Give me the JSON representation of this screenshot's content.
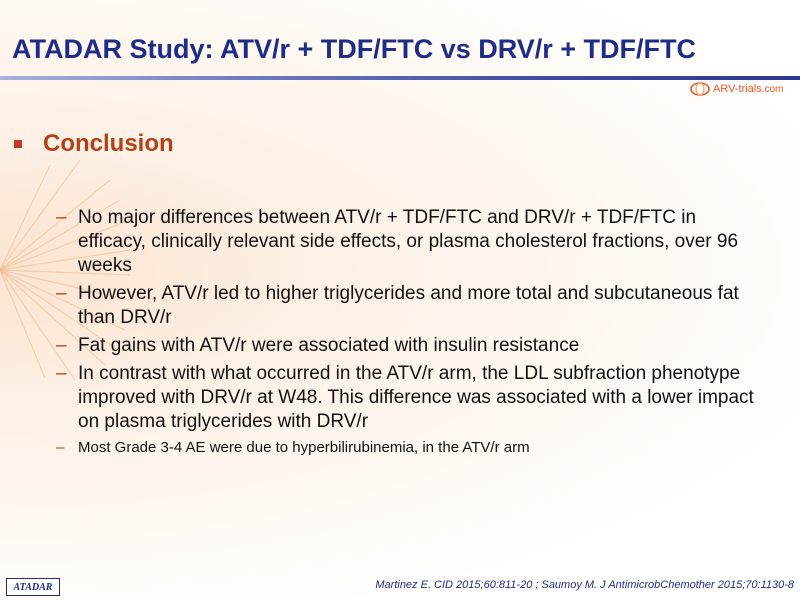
{
  "title": "ATADAR Study: ATV/r + TDF/FTC vs DRV/r + TDF/FTC",
  "logo": {
    "text": "ARV-trials",
    "suffix": ".com"
  },
  "section": {
    "heading": "Conclusion"
  },
  "bullets": [
    {
      "text": "No major differences between ATV/r + TDF/FTC and DRV/r + TDF/FTC in efficacy, clinically relevant side effects, or plasma cholesterol fractions, over 96 weeks"
    },
    {
      "text": "However, ATV/r led to higher triglycerides and more total and subcutaneous fat than DRV/r"
    },
    {
      "text": "Fat gains with ATV/r were associated with insulin resistance"
    },
    {
      "text": "In contrast with what occurred in the ATV/r arm, the LDL subfraction phenotype improved with DRV/r at W48. This difference was associated with a lower impact on plasma triglycerides with DRV/r"
    },
    {
      "text": "Most Grade 3-4 AE were due to hyperbilirubinemia, in the ATV/r arm"
    }
  ],
  "footer": {
    "badge": "ATADAR",
    "citation": "Martinez E. CID 2015;60:811-20 ; Saumoy M. J AntimicrobChemother 2015;70:1130-8"
  },
  "colors": {
    "title": "#1f2d86",
    "accent": "#b2421a",
    "logo": "#e2572a"
  },
  "icons": {
    "logo": "arv-trials-logo-icon",
    "bullet": "square-bullet-icon",
    "decoration": "starburst-icon"
  }
}
